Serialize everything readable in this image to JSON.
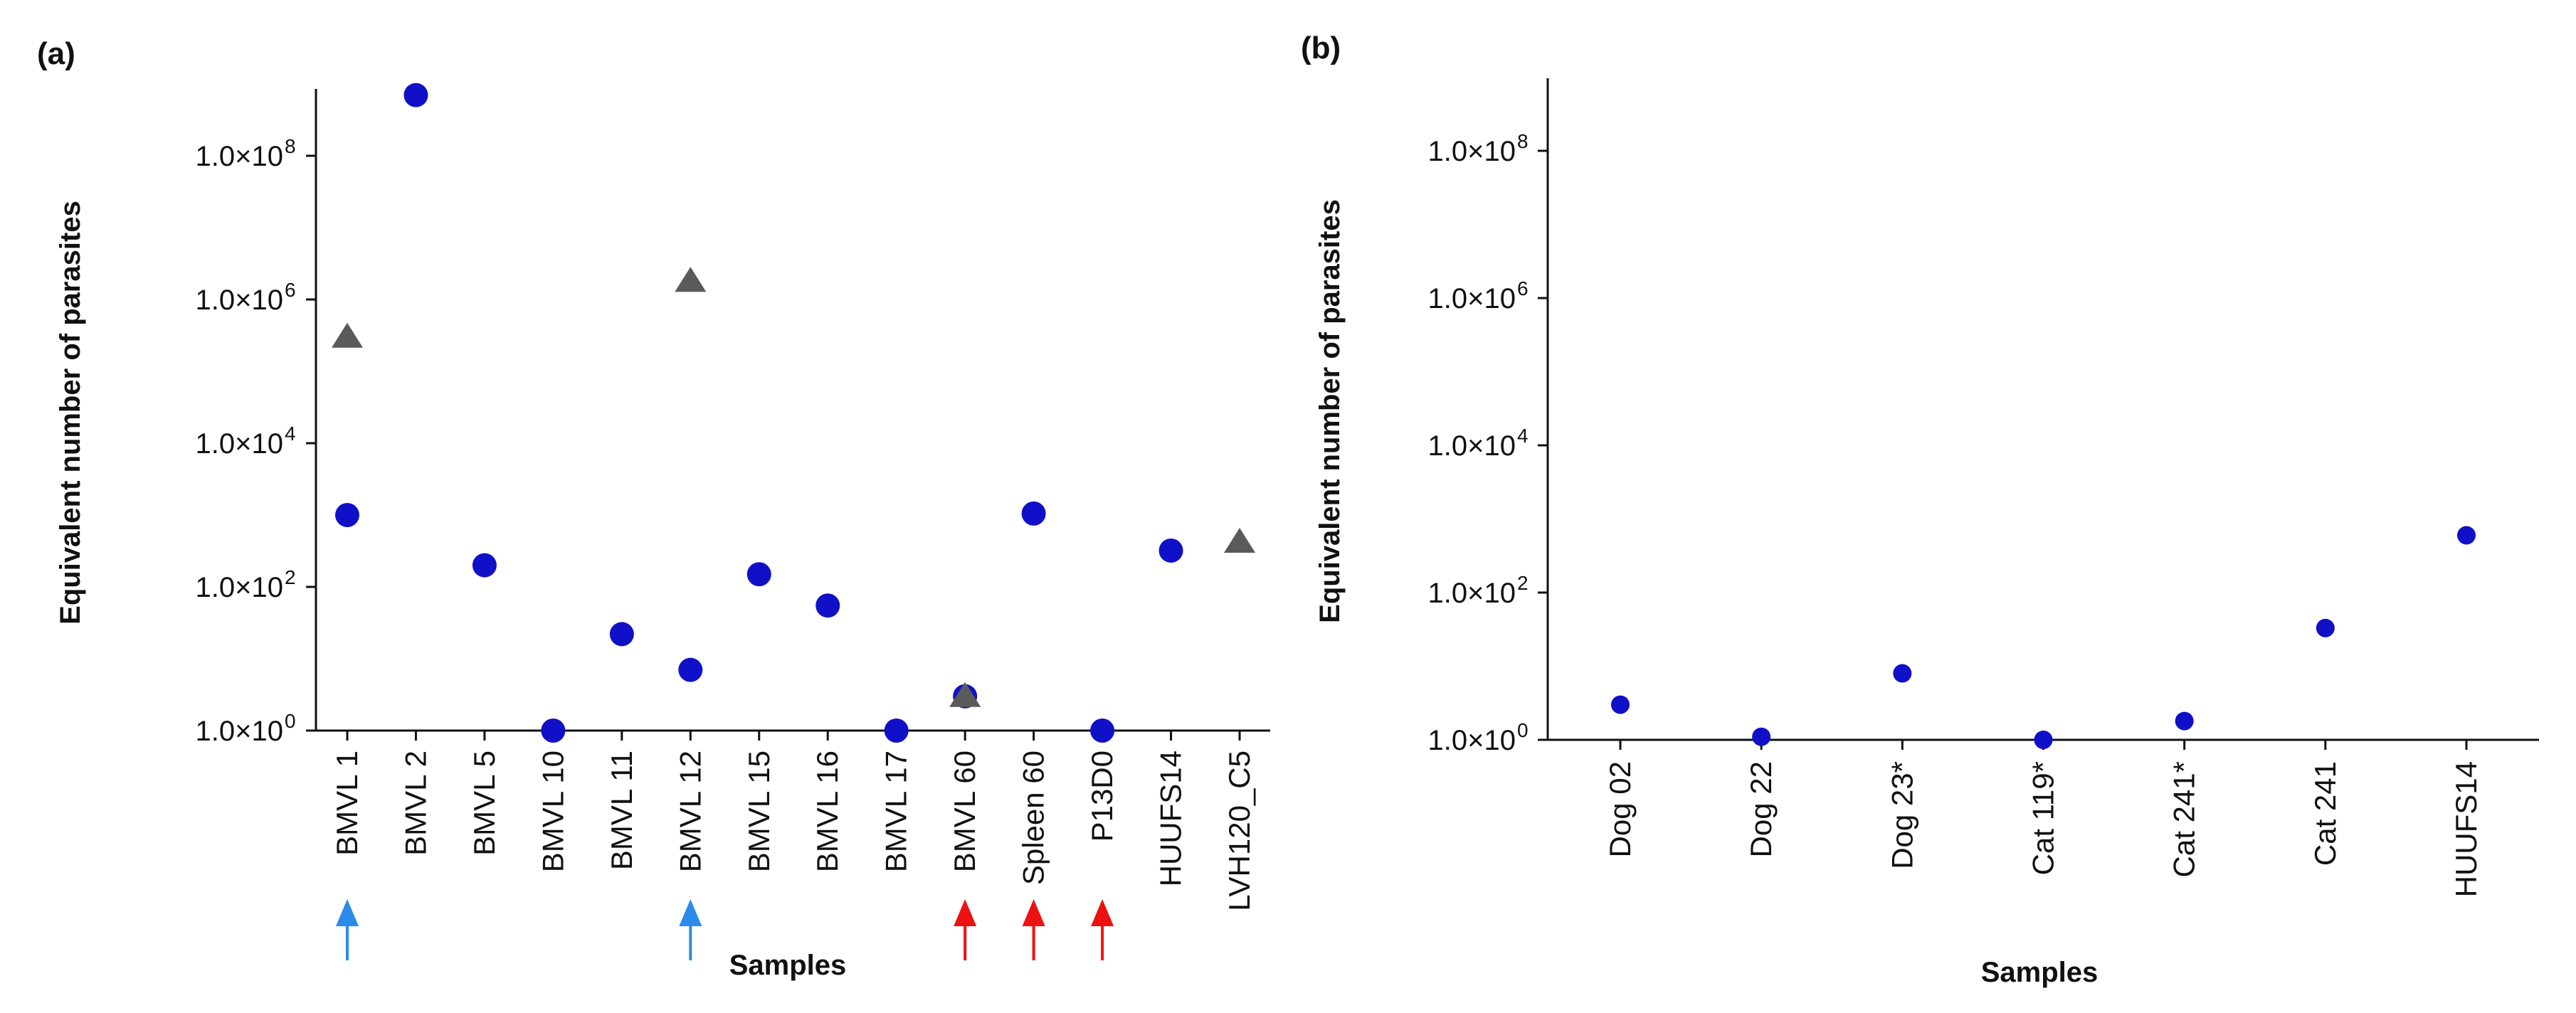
{
  "colors": {
    "circle_series": "#1010c8",
    "triangle_series": "#5a5a5a",
    "arrow_blue": "#2b8be8",
    "arrow_red": "#ee1111",
    "axis": "#111111"
  },
  "chart_data": [
    {
      "panel_label": "(a)",
      "type": "scatter",
      "scale": "log",
      "ylabel": "Equivalent number of parasites",
      "xlabel": "Samples",
      "ylim": [
        1,
        1000000000
      ],
      "yticks": [
        {
          "value": 1,
          "mantissa": "1.0×10",
          "exp": "0"
        },
        {
          "value": 100,
          "mantissa": "1.0×10",
          "exp": "2"
        },
        {
          "value": 10000,
          "mantissa": "1.0×10",
          "exp": "4"
        },
        {
          "value": 1000000,
          "mantissa": "1.0×10",
          "exp": "6"
        },
        {
          "value": 100000000,
          "mantissa": "1.0×10",
          "exp": "8"
        }
      ],
      "categories": [
        "BMVL 1",
        "BMVL 2",
        "BMVL 5",
        "BMVL 10",
        "BMVL 11",
        "BMVL 12",
        "BMVL 15",
        "BMVL 16",
        "BMVL 17",
        "BMVL 60",
        "Spleen 60",
        "P13D0",
        "HUUFS14",
        "LVH120_C5"
      ],
      "series": [
        {
          "name": "circle",
          "marker": "circle",
          "values": [
            1000,
            700000000,
            200,
            1,
            22,
            7,
            150,
            55,
            1,
            3,
            1050,
            1,
            320,
            null
          ]
        },
        {
          "name": "triangle",
          "marker": "triangle",
          "values": [
            300000,
            null,
            null,
            null,
            null,
            1800000,
            null,
            null,
            null,
            3,
            null,
            null,
            null,
            420
          ]
        }
      ],
      "annotations": [
        {
          "category": "BMVL 1",
          "marker": "blue-arrow"
        },
        {
          "category": "BMVL 12",
          "marker": "blue-arrow"
        },
        {
          "category": "BMVL 60",
          "marker": "red-arrow"
        },
        {
          "category": "Spleen 60",
          "marker": "red-arrow"
        },
        {
          "category": "P13D0",
          "marker": "red-arrow"
        }
      ]
    },
    {
      "panel_label": "(b)",
      "type": "scatter",
      "scale": "log",
      "ylabel": "Equivalent number of parasites",
      "xlabel": "Samples",
      "ylim": [
        1,
        1000000000
      ],
      "yticks": [
        {
          "value": 1,
          "mantissa": "1.0×10",
          "exp": "0"
        },
        {
          "value": 100,
          "mantissa": "1.0×10",
          "exp": "2"
        },
        {
          "value": 10000,
          "mantissa": "1.0×10",
          "exp": "4"
        },
        {
          "value": 1000000,
          "mantissa": "1.0×10",
          "exp": "6"
        },
        {
          "value": 100000000,
          "mantissa": "1.0×10",
          "exp": "8"
        }
      ],
      "categories": [
        "Dog 02",
        "Dog 22",
        "Dog 23*",
        "Cat 119*",
        "Cat 241*",
        "Cat 241",
        "HUUFS14"
      ],
      "series": [
        {
          "name": "circle",
          "marker": "circle",
          "values": [
            3,
            1.1,
            8,
            1,
            1.8,
            33,
            600
          ]
        }
      ],
      "annotations": []
    }
  ]
}
